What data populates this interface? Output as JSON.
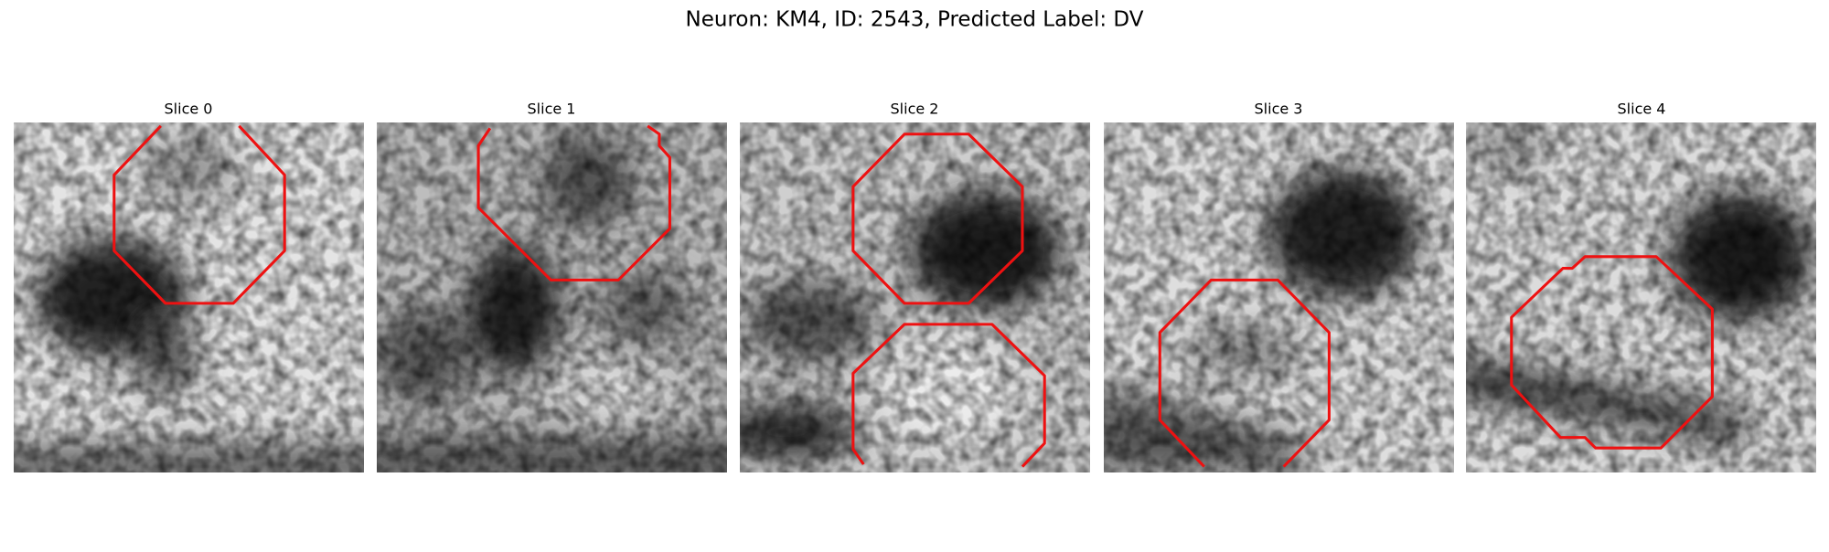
{
  "title": "Neuron: KM4, ID: 2543, Predicted Label: DV",
  "panels": [
    {
      "title": "Slice 0"
    },
    {
      "title": "Slice 1"
    },
    {
      "title": "Slice 2"
    },
    {
      "title": "Slice 3"
    },
    {
      "title": "Slice 4"
    }
  ]
}
